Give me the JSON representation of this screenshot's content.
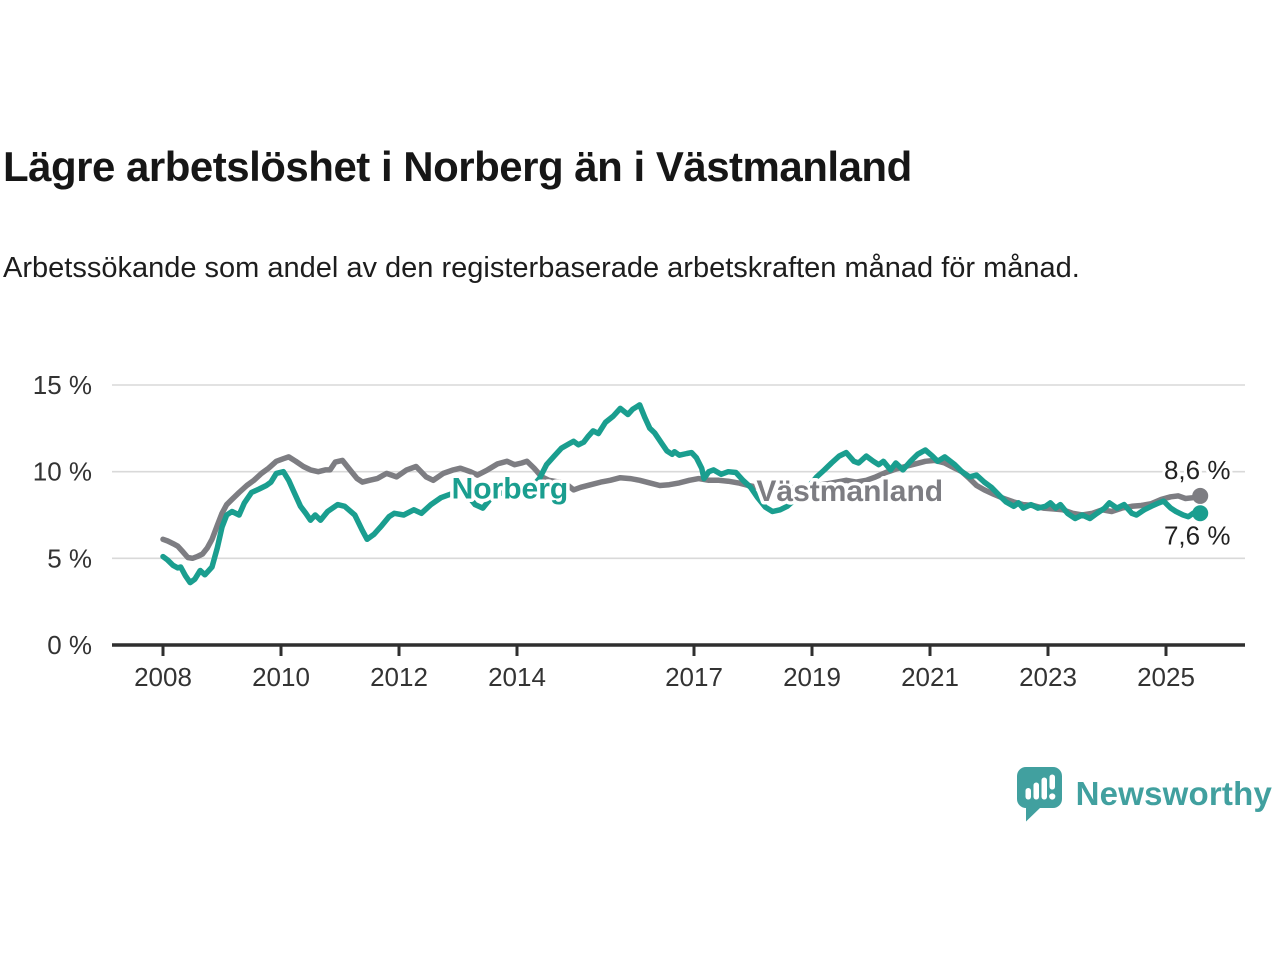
{
  "header": {
    "title": "Lägre arbetslöshet i Norberg än i Västmanland",
    "subtitle": "Arbetssökande som andel av den registerbaserade arbetskraften månad för månad."
  },
  "chart_data": {
    "type": "line",
    "unit": "%",
    "grid": true,
    "xlim": [
      2007.14,
      2026.34
    ],
    "ylim": [
      0,
      15
    ],
    "x_ticks": [
      "2008",
      "2010",
      "2012",
      "2014",
      "2017",
      "2019",
      "2021",
      "2023",
      "2025"
    ],
    "x_tick_years": [
      2008,
      2010,
      2012,
      2014,
      2017,
      2019,
      2021,
      2023,
      2025
    ],
    "y_ticks": [
      0,
      5,
      10,
      15
    ],
    "y_tick_labels": [
      "0 %",
      "5 %",
      "10 %",
      "15 %"
    ],
    "colors": {
      "norberg": "#1a9e8f",
      "vastmanland": "#7d7d82",
      "grid": "#d9d9d9",
      "axis": "#2f2f2f",
      "tick_text": "#333333",
      "value_text": "#222222"
    },
    "series": [
      {
        "name": "Västmanland",
        "key": "vastmanland",
        "color": "#7d7d82",
        "end_label": "8,6 %",
        "end_value": 8.6,
        "points": [
          [
            2008.0,
            6.1
          ],
          [
            2008.08,
            6.0
          ],
          [
            2008.17,
            5.85
          ],
          [
            2008.25,
            5.7
          ],
          [
            2008.33,
            5.4
          ],
          [
            2008.42,
            5.05
          ],
          [
            2008.5,
            5.0
          ],
          [
            2008.58,
            5.1
          ],
          [
            2008.67,
            5.25
          ],
          [
            2008.75,
            5.6
          ],
          [
            2008.83,
            6.1
          ],
          [
            2008.92,
            6.9
          ],
          [
            2009.0,
            7.6
          ],
          [
            2009.08,
            8.1
          ],
          [
            2009.17,
            8.4
          ],
          [
            2009.29,
            8.8
          ],
          [
            2009.42,
            9.2
          ],
          [
            2009.54,
            9.5
          ],
          [
            2009.67,
            9.9
          ],
          [
            2009.79,
            10.2
          ],
          [
            2009.92,
            10.6
          ],
          [
            2010.04,
            10.75
          ],
          [
            2010.13,
            10.85
          ],
          [
            2010.25,
            10.6
          ],
          [
            2010.38,
            10.3
          ],
          [
            2010.5,
            10.1
          ],
          [
            2010.63,
            10.0
          ],
          [
            2010.75,
            10.1
          ],
          [
            2010.83,
            10.1
          ],
          [
            2010.92,
            10.55
          ],
          [
            2011.04,
            10.65
          ],
          [
            2011.17,
            10.1
          ],
          [
            2011.29,
            9.6
          ],
          [
            2011.38,
            9.4
          ],
          [
            2011.5,
            9.5
          ],
          [
            2011.63,
            9.6
          ],
          [
            2011.79,
            9.9
          ],
          [
            2011.96,
            9.7
          ],
          [
            2012.13,
            10.1
          ],
          [
            2012.29,
            10.3
          ],
          [
            2012.46,
            9.7
          ],
          [
            2012.58,
            9.5
          ],
          [
            2012.75,
            9.9
          ],
          [
            2012.92,
            10.1
          ],
          [
            2013.04,
            10.2
          ],
          [
            2013.21,
            10.0
          ],
          [
            2013.33,
            9.8
          ],
          [
            2013.5,
            10.1
          ],
          [
            2013.67,
            10.45
          ],
          [
            2013.83,
            10.6
          ],
          [
            2013.96,
            10.4
          ],
          [
            2014.08,
            10.5
          ],
          [
            2014.17,
            10.6
          ],
          [
            2014.29,
            10.2
          ],
          [
            2014.42,
            9.7
          ],
          [
            2014.54,
            9.5
          ],
          [
            2014.71,
            9.4
          ],
          [
            2014.83,
            9.3
          ],
          [
            2014.96,
            8.95
          ],
          [
            2015.08,
            9.1
          ],
          [
            2015.25,
            9.25
          ],
          [
            2015.42,
            9.4
          ],
          [
            2015.58,
            9.5
          ],
          [
            2015.75,
            9.65
          ],
          [
            2015.92,
            9.6
          ],
          [
            2016.08,
            9.5
          ],
          [
            2016.25,
            9.35
          ],
          [
            2016.42,
            9.2
          ],
          [
            2016.58,
            9.25
          ],
          [
            2016.75,
            9.35
          ],
          [
            2016.92,
            9.5
          ],
          [
            2017.08,
            9.6
          ],
          [
            2017.25,
            9.5
          ],
          [
            2017.42,
            9.5
          ],
          [
            2017.58,
            9.45
          ],
          [
            2017.75,
            9.35
          ],
          [
            2017.92,
            9.2
          ],
          [
            2018.08,
            9.1
          ],
          [
            2018.25,
            9.0
          ],
          [
            2018.42,
            9.0
          ],
          [
            2018.58,
            9.05
          ],
          [
            2018.75,
            9.1
          ],
          [
            2018.92,
            9.15
          ],
          [
            2019.08,
            9.2
          ],
          [
            2019.25,
            9.3
          ],
          [
            2019.42,
            9.4
          ],
          [
            2019.58,
            9.5
          ],
          [
            2019.75,
            9.4
          ],
          [
            2019.92,
            9.5
          ],
          [
            2020.08,
            9.7
          ],
          [
            2020.25,
            9.95
          ],
          [
            2020.42,
            10.15
          ],
          [
            2020.58,
            10.3
          ],
          [
            2020.75,
            10.45
          ],
          [
            2020.92,
            10.6
          ],
          [
            2021.08,
            10.65
          ],
          [
            2021.25,
            10.5
          ],
          [
            2021.42,
            10.2
          ],
          [
            2021.54,
            10.0
          ],
          [
            2021.67,
            9.6
          ],
          [
            2021.79,
            9.2
          ],
          [
            2021.92,
            8.95
          ],
          [
            2022.08,
            8.7
          ],
          [
            2022.25,
            8.45
          ],
          [
            2022.42,
            8.25
          ],
          [
            2022.58,
            8.1
          ],
          [
            2022.75,
            8.05
          ],
          [
            2022.92,
            7.9
          ],
          [
            2023.08,
            7.85
          ],
          [
            2023.25,
            7.8
          ],
          [
            2023.42,
            7.6
          ],
          [
            2023.58,
            7.5
          ],
          [
            2023.75,
            7.6
          ],
          [
            2023.92,
            7.8
          ],
          [
            2024.08,
            7.7
          ],
          [
            2024.25,
            7.9
          ],
          [
            2024.42,
            8.0
          ],
          [
            2024.58,
            8.05
          ],
          [
            2024.75,
            8.15
          ],
          [
            2024.92,
            8.4
          ],
          [
            2025.08,
            8.55
          ],
          [
            2025.21,
            8.6
          ],
          [
            2025.33,
            8.45
          ],
          [
            2025.46,
            8.5
          ],
          [
            2025.58,
            8.6
          ]
        ]
      },
      {
        "name": "Norberg",
        "key": "norberg",
        "color": "#1a9e8f",
        "end_label": "7,6 %",
        "end_value": 7.6,
        "points": [
          [
            2008.0,
            5.1
          ],
          [
            2008.08,
            4.9
          ],
          [
            2008.17,
            4.6
          ],
          [
            2008.25,
            4.45
          ],
          [
            2008.3,
            4.5
          ],
          [
            2008.38,
            4.0
          ],
          [
            2008.46,
            3.6
          ],
          [
            2008.54,
            3.8
          ],
          [
            2008.63,
            4.3
          ],
          [
            2008.71,
            4.05
          ],
          [
            2008.83,
            4.5
          ],
          [
            2008.92,
            5.6
          ],
          [
            2009.0,
            6.8
          ],
          [
            2009.08,
            7.5
          ],
          [
            2009.17,
            7.7
          ],
          [
            2009.29,
            7.5
          ],
          [
            2009.38,
            8.2
          ],
          [
            2009.5,
            8.8
          ],
          [
            2009.63,
            9.0
          ],
          [
            2009.75,
            9.2
          ],
          [
            2009.83,
            9.4
          ],
          [
            2009.92,
            9.9
          ],
          [
            2010.04,
            10.0
          ],
          [
            2010.13,
            9.5
          ],
          [
            2010.21,
            8.9
          ],
          [
            2010.33,
            8.0
          ],
          [
            2010.42,
            7.6
          ],
          [
            2010.5,
            7.2
          ],
          [
            2010.58,
            7.5
          ],
          [
            2010.67,
            7.2
          ],
          [
            2010.79,
            7.7
          ],
          [
            2010.96,
            8.1
          ],
          [
            2011.08,
            8.0
          ],
          [
            2011.25,
            7.5
          ],
          [
            2011.38,
            6.6
          ],
          [
            2011.46,
            6.1
          ],
          [
            2011.58,
            6.4
          ],
          [
            2011.71,
            6.9
          ],
          [
            2011.83,
            7.4
          ],
          [
            2011.92,
            7.6
          ],
          [
            2012.08,
            7.5
          ],
          [
            2012.25,
            7.8
          ],
          [
            2012.38,
            7.6
          ],
          [
            2012.54,
            8.1
          ],
          [
            2012.71,
            8.5
          ],
          [
            2012.83,
            8.65
          ],
          [
            2012.96,
            8.8
          ],
          [
            2013.04,
            8.9
          ],
          [
            2013.17,
            8.6
          ],
          [
            2013.29,
            8.1
          ],
          [
            2013.42,
            7.9
          ],
          [
            2013.54,
            8.4
          ],
          [
            2013.71,
            8.75
          ],
          [
            2013.88,
            8.8
          ],
          [
            2014.0,
            8.9
          ],
          [
            2014.13,
            9.0
          ],
          [
            2014.25,
            9.1
          ],
          [
            2014.38,
            9.6
          ],
          [
            2014.5,
            10.4
          ],
          [
            2014.63,
            10.9
          ],
          [
            2014.75,
            11.35
          ],
          [
            2014.88,
            11.6
          ],
          [
            2014.96,
            11.75
          ],
          [
            2015.04,
            11.55
          ],
          [
            2015.13,
            11.7
          ],
          [
            2015.21,
            12.05
          ],
          [
            2015.29,
            12.35
          ],
          [
            2015.38,
            12.2
          ],
          [
            2015.5,
            12.85
          ],
          [
            2015.63,
            13.2
          ],
          [
            2015.75,
            13.65
          ],
          [
            2015.88,
            13.3
          ],
          [
            2015.96,
            13.6
          ],
          [
            2016.08,
            13.85
          ],
          [
            2016.17,
            13.1
          ],
          [
            2016.25,
            12.5
          ],
          [
            2016.33,
            12.25
          ],
          [
            2016.46,
            11.6
          ],
          [
            2016.54,
            11.2
          ],
          [
            2016.63,
            11.0
          ],
          [
            2016.67,
            11.15
          ],
          [
            2016.75,
            10.95
          ],
          [
            2016.88,
            11.05
          ],
          [
            2016.96,
            11.1
          ],
          [
            2017.04,
            10.8
          ],
          [
            2017.13,
            10.2
          ],
          [
            2017.17,
            9.6
          ],
          [
            2017.25,
            10.0
          ],
          [
            2017.33,
            10.1
          ],
          [
            2017.46,
            9.85
          ],
          [
            2017.58,
            10.0
          ],
          [
            2017.71,
            9.95
          ],
          [
            2017.83,
            9.5
          ],
          [
            2017.96,
            9.1
          ],
          [
            2018.08,
            8.5
          ],
          [
            2018.21,
            7.95
          ],
          [
            2018.33,
            7.7
          ],
          [
            2018.46,
            7.8
          ],
          [
            2018.58,
            8.0
          ],
          [
            2018.71,
            8.4
          ],
          [
            2018.83,
            8.8
          ],
          [
            2018.96,
            9.2
          ],
          [
            2019.08,
            9.7
          ],
          [
            2019.21,
            10.1
          ],
          [
            2019.33,
            10.5
          ],
          [
            2019.46,
            10.9
          ],
          [
            2019.58,
            11.1
          ],
          [
            2019.71,
            10.6
          ],
          [
            2019.79,
            10.5
          ],
          [
            2019.92,
            10.9
          ],
          [
            2020.04,
            10.6
          ],
          [
            2020.13,
            10.4
          ],
          [
            2020.21,
            10.6
          ],
          [
            2020.33,
            10.1
          ],
          [
            2020.42,
            10.5
          ],
          [
            2020.54,
            10.1
          ],
          [
            2020.67,
            10.6
          ],
          [
            2020.79,
            11.0
          ],
          [
            2020.92,
            11.25
          ],
          [
            2021.04,
            10.9
          ],
          [
            2021.13,
            10.6
          ],
          [
            2021.25,
            10.85
          ],
          [
            2021.42,
            10.4
          ],
          [
            2021.54,
            10.0
          ],
          [
            2021.67,
            9.7
          ],
          [
            2021.79,
            9.8
          ],
          [
            2021.92,
            9.4
          ],
          [
            2022.04,
            9.1
          ],
          [
            2022.17,
            8.65
          ],
          [
            2022.29,
            8.25
          ],
          [
            2022.42,
            8.0
          ],
          [
            2022.5,
            8.2
          ],
          [
            2022.58,
            7.9
          ],
          [
            2022.71,
            8.1
          ],
          [
            2022.83,
            7.9
          ],
          [
            2022.96,
            8.0
          ],
          [
            2023.04,
            8.2
          ],
          [
            2023.13,
            7.9
          ],
          [
            2023.21,
            8.1
          ],
          [
            2023.33,
            7.6
          ],
          [
            2023.46,
            7.3
          ],
          [
            2023.58,
            7.5
          ],
          [
            2023.71,
            7.3
          ],
          [
            2023.83,
            7.6
          ],
          [
            2023.96,
            7.9
          ],
          [
            2024.04,
            8.2
          ],
          [
            2024.17,
            7.9
          ],
          [
            2024.29,
            8.1
          ],
          [
            2024.42,
            7.6
          ],
          [
            2024.5,
            7.5
          ],
          [
            2024.63,
            7.8
          ],
          [
            2024.75,
            8.0
          ],
          [
            2024.88,
            8.2
          ],
          [
            2024.96,
            8.3
          ],
          [
            2025.08,
            7.9
          ],
          [
            2025.17,
            7.7
          ],
          [
            2025.29,
            7.5
          ],
          [
            2025.38,
            7.4
          ],
          [
            2025.46,
            7.6
          ],
          [
            2025.54,
            7.45
          ],
          [
            2025.58,
            7.6
          ]
        ]
      }
    ],
    "series_labels": [
      {
        "text": "Norberg",
        "x": 2013.88,
        "y": 9.0,
        "color": "#1a9e8f"
      },
      {
        "text": "Västmanland",
        "x": 2019.64,
        "y": 8.85,
        "color": "#7d7d82"
      }
    ]
  },
  "footer": {
    "brand": "Newsworthy",
    "brand_color": "#41a09f"
  }
}
